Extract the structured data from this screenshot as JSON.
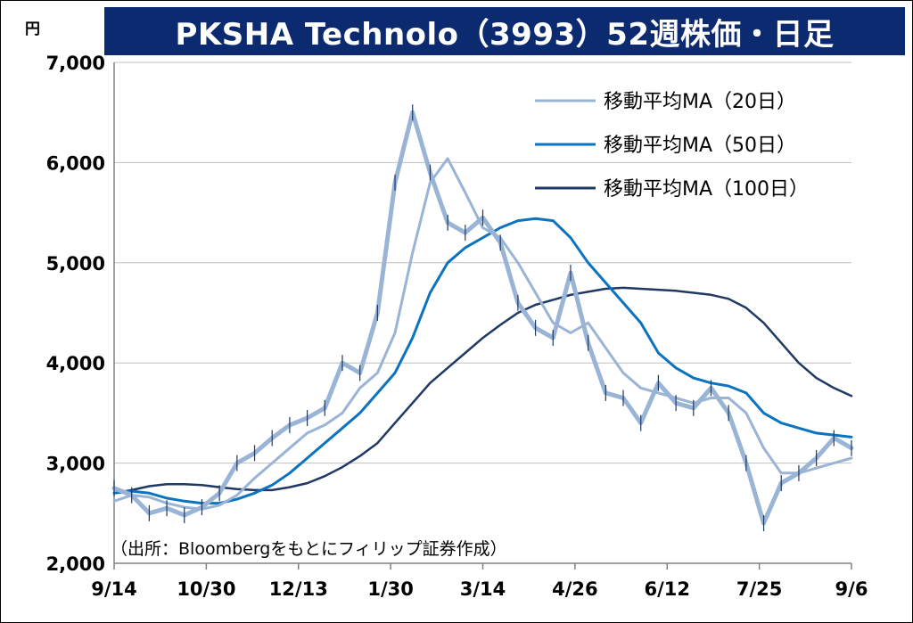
{
  "title": "PKSHA Technolo（3993）52週株価・日足",
  "source_note": "（出所：Bloombergをもとにフィリップ証券作成）",
  "chart_data": {
    "type": "line",
    "title": "PKSHA Technolo（3993）52週株価・日足",
    "ylabel": "円",
    "xlabel": "",
    "ylim": [
      2000,
      7000
    ],
    "yticks": [
      2000,
      3000,
      4000,
      5000,
      6000,
      7000
    ],
    "ytick_labels": [
      "2,000",
      "3,000",
      "4,000",
      "5,000",
      "6,000",
      "7,000"
    ],
    "xtick_labels": [
      "9/14",
      "10/30",
      "12/13",
      "1/30",
      "3/14",
      "4/26",
      "6/12",
      "7/25",
      "9/6"
    ],
    "x": [
      "9/14",
      "9/23",
      "10/3",
      "10/13",
      "10/22",
      "10/30",
      "11/12",
      "11/22",
      "12/1",
      "12/13",
      "12/22",
      "1/4",
      "1/15",
      "1/23",
      "1/30",
      "2/6",
      "2/14",
      "2/20",
      "2/27",
      "3/5",
      "3/14",
      "3/22",
      "4/1",
      "4/10",
      "4/18",
      "4/26",
      "5/1",
      "5/10",
      "5/20",
      "5/29",
      "6/4",
      "6/12",
      "6/20",
      "6/28",
      "7/8",
      "7/17",
      "7/25",
      "7/29",
      "8/5",
      "8/14",
      "8/23",
      "8/30",
      "9/6"
    ],
    "grid": true,
    "legend_position": "top-right",
    "series": [
      {
        "name": "",
        "color": "#9ab4d6",
        "values": [
          2750,
          2680,
          2500,
          2550,
          2480,
          2560,
          2700,
          3000,
          3100,
          3250,
          3380,
          3450,
          3550,
          4000,
          3900,
          4500,
          5800,
          6500,
          5900,
          5400,
          5300,
          5450,
          5200,
          4600,
          4350,
          4250,
          4900,
          4200,
          3700,
          3650,
          3400,
          3800,
          3600,
          3550,
          3750,
          3500,
          3000,
          2400,
          2800,
          2900,
          3050,
          3250,
          3150
        ]
      },
      {
        "name": "移動平均MA（20日）",
        "color": "#9ab4d6",
        "values": [
          2620,
          2680,
          2660,
          2600,
          2560,
          2540,
          2580,
          2680,
          2850,
          3000,
          3150,
          3300,
          3380,
          3500,
          3750,
          3900,
          4300,
          5100,
          5800,
          6040,
          5700,
          5350,
          5250,
          5000,
          4700,
          4400,
          4300,
          4400,
          4150,
          3900,
          3750,
          3700,
          3650,
          3600,
          3650,
          3650,
          3500,
          3150,
          2900,
          2900,
          2950,
          3000,
          3050
        ]
      },
      {
        "name": "移動平均MA（50日）",
        "color": "#0b73c0",
        "values": [
          2700,
          2720,
          2700,
          2650,
          2620,
          2600,
          2600,
          2640,
          2700,
          2780,
          2900,
          3050,
          3200,
          3350,
          3500,
          3700,
          3900,
          4250,
          4700,
          5000,
          5150,
          5250,
          5350,
          5420,
          5440,
          5420,
          5250,
          5000,
          4800,
          4600,
          4400,
          4100,
          3950,
          3850,
          3800,
          3770,
          3700,
          3500,
          3400,
          3350,
          3300,
          3280,
          3260
        ]
      },
      {
        "name": "移動平均MA（100日）",
        "color": "#1f3864",
        "values": [
          2700,
          2730,
          2770,
          2790,
          2790,
          2780,
          2760,
          2740,
          2730,
          2730,
          2760,
          2800,
          2870,
          2960,
          3070,
          3200,
          3400,
          3600,
          3800,
          3950,
          4100,
          4250,
          4380,
          4500,
          4580,
          4630,
          4680,
          4710,
          4740,
          4750,
          4740,
          4730,
          4720,
          4700,
          4680,
          4640,
          4550,
          4400,
          4200,
          4000,
          3850,
          3750,
          3670
        ]
      }
    ]
  }
}
